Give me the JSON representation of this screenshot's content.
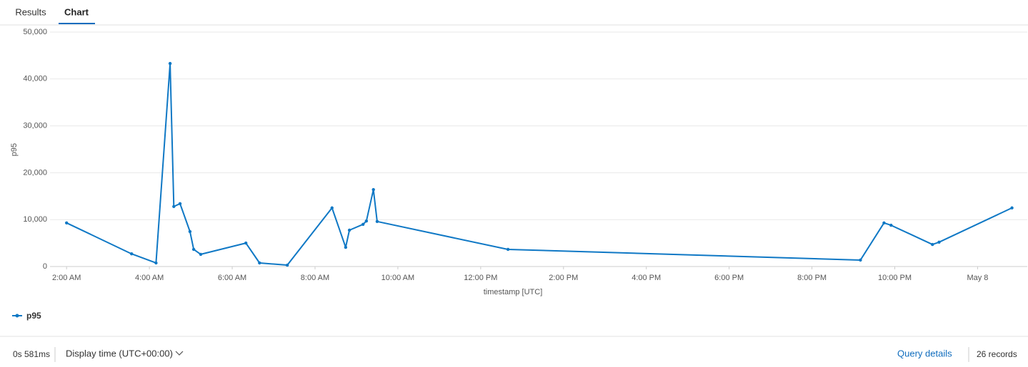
{
  "tabs": [
    "Results",
    "Chart"
  ],
  "chart_data": {
    "type": "line",
    "y_label": "p95",
    "x_label": "timestamp [UTC]",
    "x": [
      2.0,
      3.57,
      4.16,
      4.5,
      4.59,
      4.74,
      4.98,
      5.07,
      5.24,
      6.33,
      6.66,
      7.33,
      8.41,
      8.74,
      8.83,
      9.16,
      9.24,
      9.41,
      9.5,
      12.66,
      21.17,
      21.74,
      21.91,
      22.91,
      23.07,
      24.83
    ],
    "xlim": [
      1.6,
      25.2
    ],
    "xticks": [
      {
        "value": 2,
        "label": "2:00 AM"
      },
      {
        "value": 4,
        "label": "4:00 AM"
      },
      {
        "value": 6,
        "label": "6:00 AM"
      },
      {
        "value": 8,
        "label": "8:00 AM"
      },
      {
        "value": 10,
        "label": "10:00 AM"
      },
      {
        "value": 12,
        "label": "12:00 PM"
      },
      {
        "value": 14,
        "label": "2:00 PM"
      },
      {
        "value": 16,
        "label": "4:00 PM"
      },
      {
        "value": 18,
        "label": "6:00 PM"
      },
      {
        "value": 20,
        "label": "8:00 PM"
      },
      {
        "value": 22,
        "label": "10:00 PM"
      },
      {
        "value": 24,
        "label": "May 8"
      }
    ],
    "ylim": [
      0,
      50000
    ],
    "yticks": [
      0,
      {
        "value": 10000,
        "label": "10,000"
      },
      {
        "value": 20000,
        "label": "20,000"
      },
      {
        "value": 30000,
        "label": "30,000"
      },
      {
        "value": 40000,
        "label": "40,000"
      },
      {
        "value": 50000,
        "label": "50,000"
      }
    ],
    "grid": true,
    "legend": "bottom-left",
    "series": [
      {
        "name": "p95",
        "color": "#0f78c5",
        "values": [
          9300,
          2700,
          760,
          43300,
          12800,
          13400,
          7450,
          3650,
          2600,
          5000,
          760,
          300,
          12500,
          4100,
          7750,
          9000,
          9700,
          16400,
          9600,
          3650,
          1370,
          9300,
          8800,
          4700,
          5200,
          12500
        ]
      }
    ]
  },
  "footer": {
    "duration": "0s 581ms",
    "display_time": "Display time (UTC+00:00)",
    "query_details": "Query details",
    "records": "26 records"
  }
}
